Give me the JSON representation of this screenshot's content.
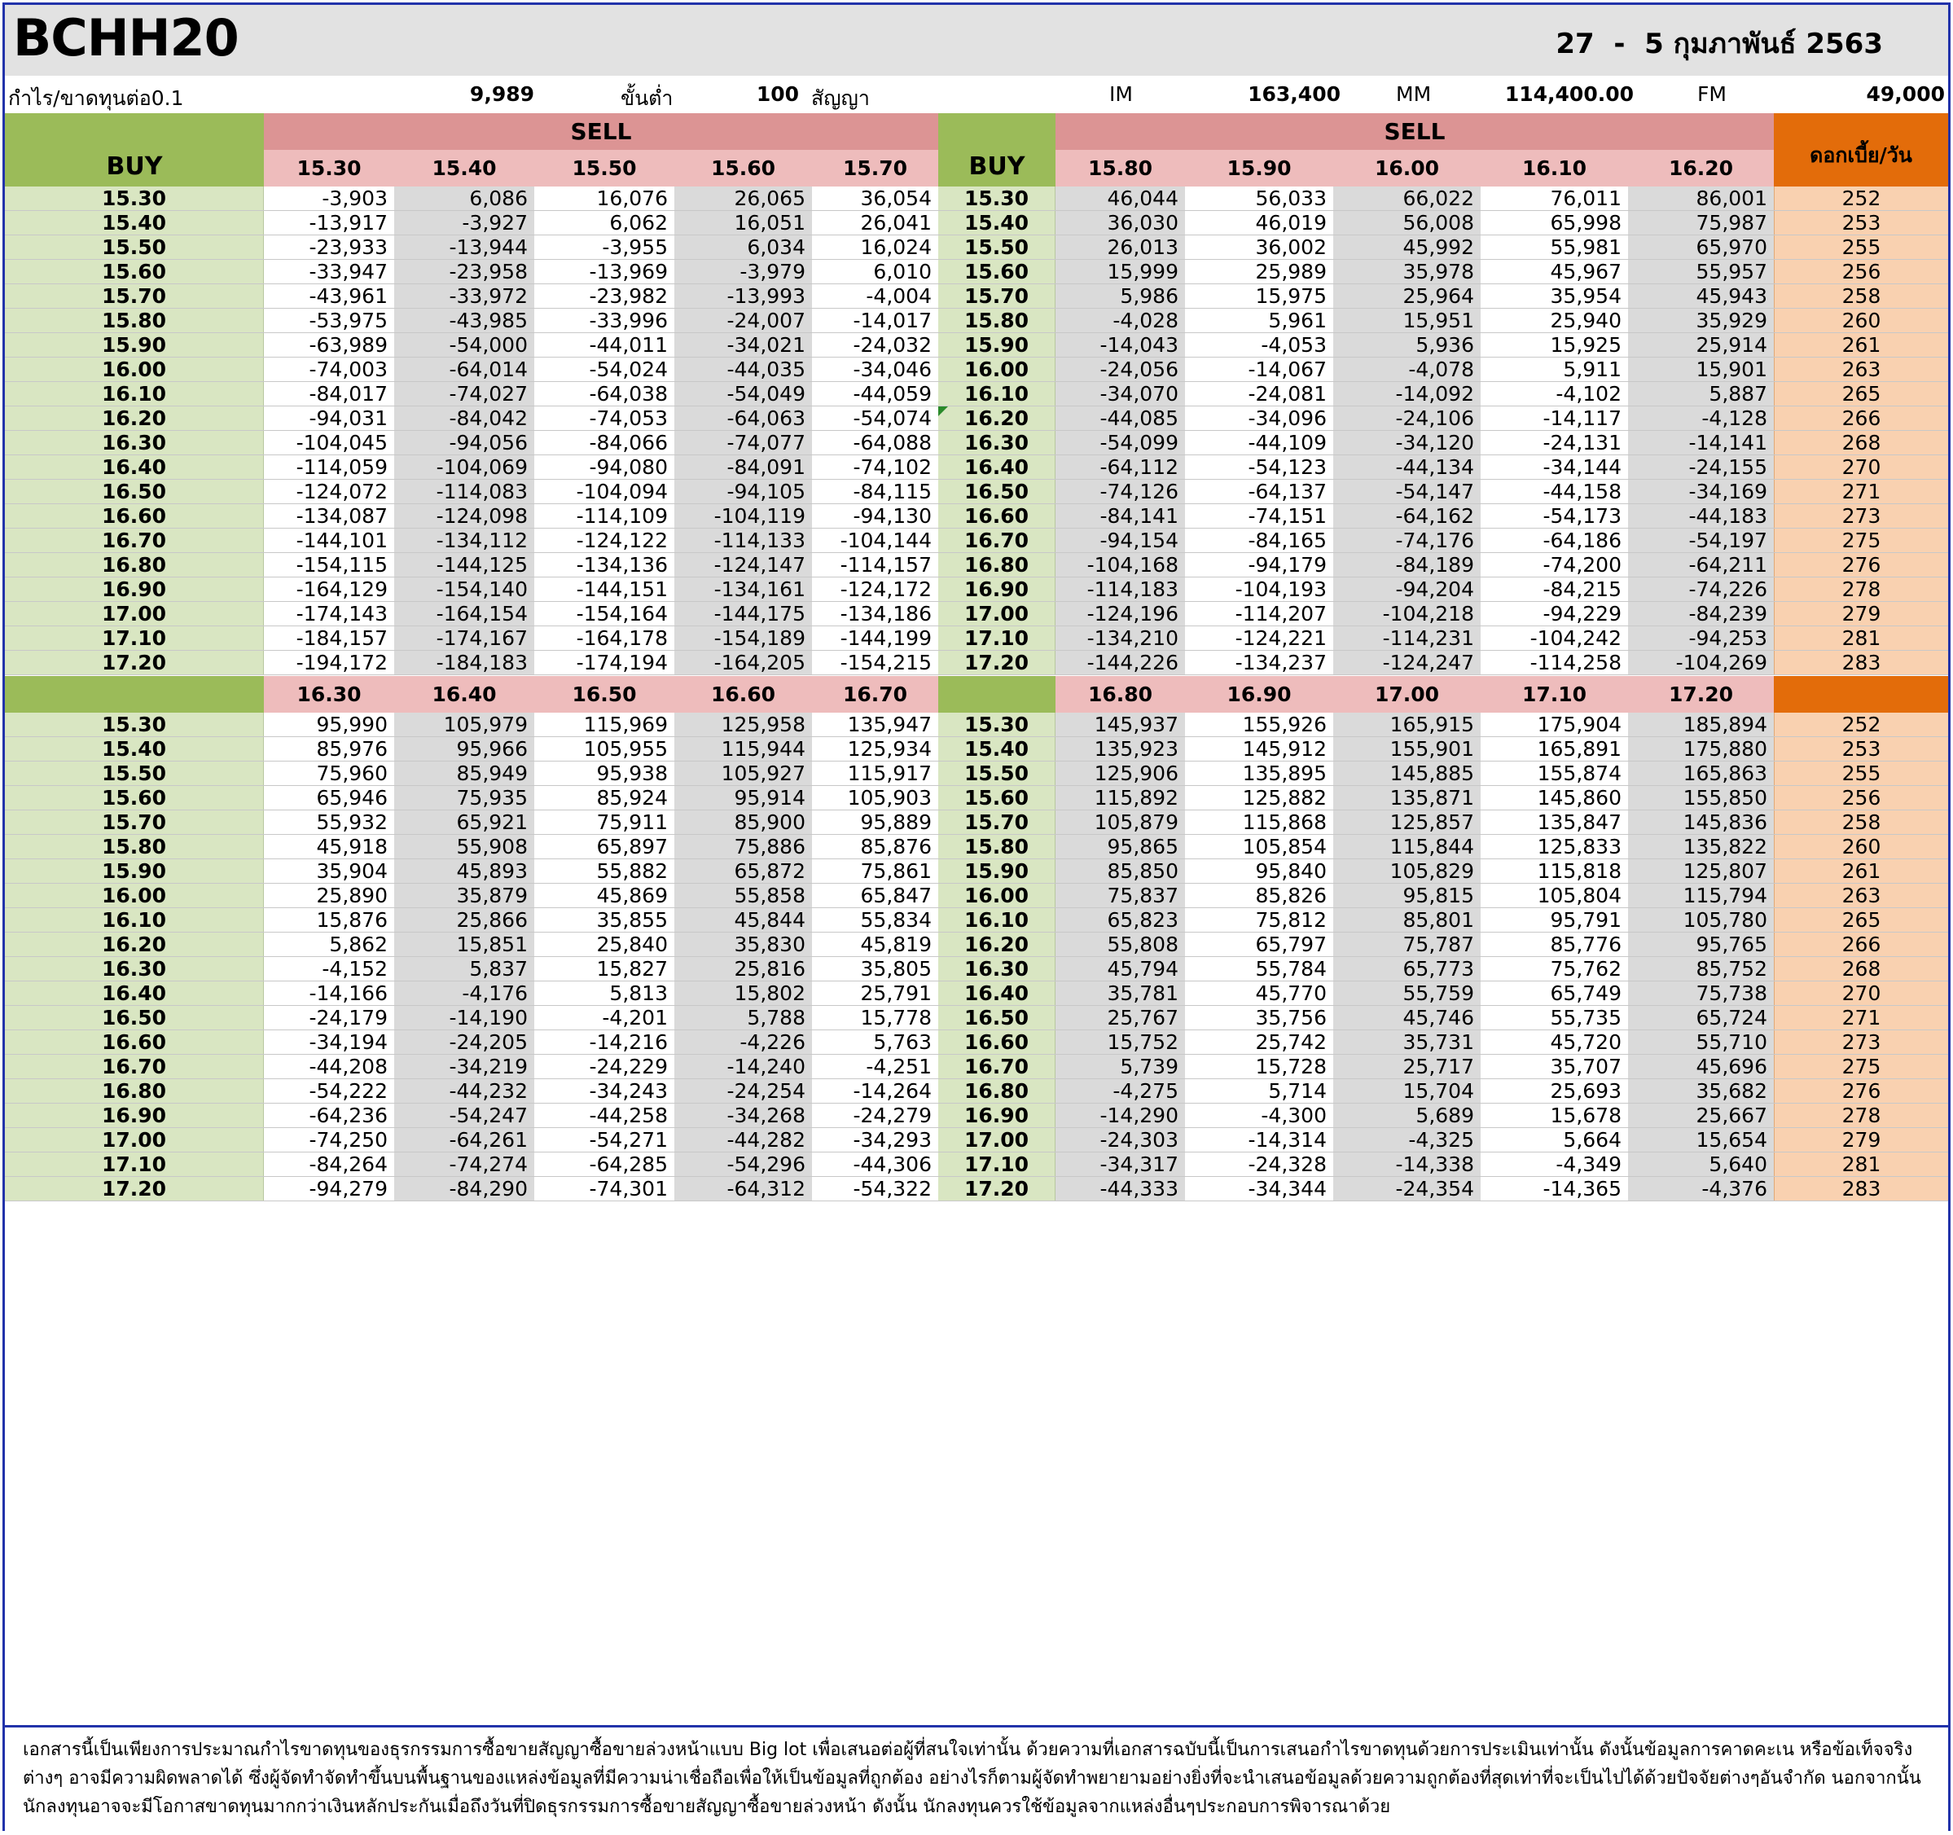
{
  "title": "BCHH20",
  "date": "27  -  5 กุมภาพันธ์ 2563",
  "info": {
    "pl_label": "กำไร/ขาดทุนต่อ0.1",
    "pl_value": "9,989",
    "min_label": "ขั้นต่ำ",
    "min_value": "100",
    "contract_label": "สัญญา",
    "im_label": "IM",
    "im_value": "163,400",
    "mm_label": "MM",
    "mm_value": "114,400.00",
    "fm_label": "FM",
    "fm_value": "49,000"
  },
  "headers": {
    "buy": "BUY",
    "sell": "SELL",
    "interest": "ดอกเบี้ย/วัน"
  },
  "buy_prices": [
    "15.30",
    "15.40",
    "15.50",
    "15.60",
    "15.70",
    "15.80",
    "15.90",
    "16.00",
    "16.10",
    "16.20",
    "16.30",
    "16.40",
    "16.50",
    "16.60",
    "16.70",
    "16.80",
    "16.90",
    "17.00",
    "17.10",
    "17.20"
  ],
  "interest": [
    "252",
    "253",
    "255",
    "256",
    "258",
    "260",
    "261",
    "263",
    "265",
    "266",
    "268",
    "270",
    "271",
    "273",
    "275",
    "276",
    "278",
    "279",
    "281",
    "283"
  ],
  "blocks": [
    {
      "sell_left": [
        "15.30",
        "15.40",
        "15.50",
        "15.60",
        "15.70"
      ],
      "sell_right": [
        "15.80",
        "15.90",
        "16.00",
        "16.10",
        "16.20"
      ],
      "rows": [
        [
          "-3,903",
          "6,086",
          "16,076",
          "26,065",
          "36,054",
          "46,044",
          "56,033",
          "66,022",
          "76,011",
          "86,001"
        ],
        [
          "-13,917",
          "-3,927",
          "6,062",
          "16,051",
          "26,041",
          "36,030",
          "46,019",
          "56,008",
          "65,998",
          "75,987"
        ],
        [
          "-23,933",
          "-13,944",
          "-3,955",
          "6,034",
          "16,024",
          "26,013",
          "36,002",
          "45,992",
          "55,981",
          "65,970"
        ],
        [
          "-33,947",
          "-23,958",
          "-13,969",
          "-3,979",
          "6,010",
          "15,999",
          "25,989",
          "35,978",
          "45,967",
          "55,957"
        ],
        [
          "-43,961",
          "-33,972",
          "-23,982",
          "-13,993",
          "-4,004",
          "5,986",
          "15,975",
          "25,964",
          "35,954",
          "45,943"
        ],
        [
          "-53,975",
          "-43,985",
          "-33,996",
          "-24,007",
          "-14,017",
          "-4,028",
          "5,961",
          "15,951",
          "25,940",
          "35,929"
        ],
        [
          "-63,989",
          "-54,000",
          "-44,011",
          "-34,021",
          "-24,032",
          "-14,043",
          "-4,053",
          "5,936",
          "15,925",
          "25,914"
        ],
        [
          "-74,003",
          "-64,014",
          "-54,024",
          "-44,035",
          "-34,046",
          "-24,056",
          "-14,067",
          "-4,078",
          "5,911",
          "15,901"
        ],
        [
          "-84,017",
          "-74,027",
          "-64,038",
          "-54,049",
          "-44,059",
          "-34,070",
          "-24,081",
          "-14,092",
          "-4,102",
          "5,887"
        ],
        [
          "-94,031",
          "-84,042",
          "-74,053",
          "-64,063",
          "-54,074",
          "-44,085",
          "-34,096",
          "-24,106",
          "-14,117",
          "-4,128"
        ],
        [
          "-104,045",
          "-94,056",
          "-84,066",
          "-74,077",
          "-64,088",
          "-54,099",
          "-44,109",
          "-34,120",
          "-24,131",
          "-14,141"
        ],
        [
          "-114,059",
          "-104,069",
          "-94,080",
          "-84,091",
          "-74,102",
          "-64,112",
          "-54,123",
          "-44,134",
          "-34,144",
          "-24,155"
        ],
        [
          "-124,072",
          "-114,083",
          "-104,094",
          "-94,105",
          "-84,115",
          "-74,126",
          "-64,137",
          "-54,147",
          "-44,158",
          "-34,169"
        ],
        [
          "-134,087",
          "-124,098",
          "-114,109",
          "-104,119",
          "-94,130",
          "-84,141",
          "-74,151",
          "-64,162",
          "-54,173",
          "-44,183"
        ],
        [
          "-144,101",
          "-134,112",
          "-124,122",
          "-114,133",
          "-104,144",
          "-94,154",
          "-84,165",
          "-74,176",
          "-64,186",
          "-54,197"
        ],
        [
          "-154,115",
          "-144,125",
          "-134,136",
          "-124,147",
          "-114,157",
          "-104,168",
          "-94,179",
          "-84,189",
          "-74,200",
          "-64,211"
        ],
        [
          "-164,129",
          "-154,140",
          "-144,151",
          "-134,161",
          "-124,172",
          "-114,183",
          "-104,193",
          "-94,204",
          "-84,215",
          "-74,226"
        ],
        [
          "-174,143",
          "-164,154",
          "-154,164",
          "-144,175",
          "-134,186",
          "-124,196",
          "-114,207",
          "-104,218",
          "-94,229",
          "-84,239"
        ],
        [
          "-184,157",
          "-174,167",
          "-164,178",
          "-154,189",
          "-144,199",
          "-134,210",
          "-124,221",
          "-114,231",
          "-104,242",
          "-94,253"
        ],
        [
          "-194,172",
          "-184,183",
          "-174,194",
          "-164,205",
          "-154,215",
          "-144,226",
          "-134,237",
          "-124,247",
          "-114,258",
          "-104,269"
        ]
      ]
    },
    {
      "sell_left": [
        "16.30",
        "16.40",
        "16.50",
        "16.60",
        "16.70"
      ],
      "sell_right": [
        "16.80",
        "16.90",
        "17.00",
        "17.10",
        "17.20"
      ],
      "rows": [
        [
          "95,990",
          "105,979",
          "115,969",
          "125,958",
          "135,947",
          "145,937",
          "155,926",
          "165,915",
          "175,904",
          "185,894"
        ],
        [
          "85,976",
          "95,966",
          "105,955",
          "115,944",
          "125,934",
          "135,923",
          "145,912",
          "155,901",
          "165,891",
          "175,880"
        ],
        [
          "75,960",
          "85,949",
          "95,938",
          "105,927",
          "115,917",
          "125,906",
          "135,895",
          "145,885",
          "155,874",
          "165,863"
        ],
        [
          "65,946",
          "75,935",
          "85,924",
          "95,914",
          "105,903",
          "115,892",
          "125,882",
          "135,871",
          "145,860",
          "155,850"
        ],
        [
          "55,932",
          "65,921",
          "75,911",
          "85,900",
          "95,889",
          "105,879",
          "115,868",
          "125,857",
          "135,847",
          "145,836"
        ],
        [
          "45,918",
          "55,908",
          "65,897",
          "75,886",
          "85,876",
          "95,865",
          "105,854",
          "115,844",
          "125,833",
          "135,822"
        ],
        [
          "35,904",
          "45,893",
          "55,882",
          "65,872",
          "75,861",
          "85,850",
          "95,840",
          "105,829",
          "115,818",
          "125,807"
        ],
        [
          "25,890",
          "35,879",
          "45,869",
          "55,858",
          "65,847",
          "75,837",
          "85,826",
          "95,815",
          "105,804",
          "115,794"
        ],
        [
          "15,876",
          "25,866",
          "35,855",
          "45,844",
          "55,834",
          "65,823",
          "75,812",
          "85,801",
          "95,791",
          "105,780"
        ],
        [
          "5,862",
          "15,851",
          "25,840",
          "35,830",
          "45,819",
          "55,808",
          "65,797",
          "75,787",
          "85,776",
          "95,765"
        ],
        [
          "-4,152",
          "5,837",
          "15,827",
          "25,816",
          "35,805",
          "45,794",
          "55,784",
          "65,773",
          "75,762",
          "85,752"
        ],
        [
          "-14,166",
          "-4,176",
          "5,813",
          "15,802",
          "25,791",
          "35,781",
          "45,770",
          "55,759",
          "65,749",
          "75,738"
        ],
        [
          "-24,179",
          "-14,190",
          "-4,201",
          "5,788",
          "15,778",
          "25,767",
          "35,756",
          "45,746",
          "55,735",
          "65,724"
        ],
        [
          "-34,194",
          "-24,205",
          "-14,216",
          "-4,226",
          "5,763",
          "15,752",
          "25,742",
          "35,731",
          "45,720",
          "55,710"
        ],
        [
          "-44,208",
          "-34,219",
          "-24,229",
          "-14,240",
          "-4,251",
          "5,739",
          "15,728",
          "25,717",
          "35,707",
          "45,696"
        ],
        [
          "-54,222",
          "-44,232",
          "-34,243",
          "-24,254",
          "-14,264",
          "-4,275",
          "5,714",
          "15,704",
          "25,693",
          "35,682"
        ],
        [
          "-64,236",
          "-54,247",
          "-44,258",
          "-34,268",
          "-24,279",
          "-14,290",
          "-4,300",
          "5,689",
          "15,678",
          "25,667"
        ],
        [
          "-74,250",
          "-64,261",
          "-54,271",
          "-44,282",
          "-34,293",
          "-24,303",
          "-14,314",
          "-4,325",
          "5,664",
          "15,654"
        ],
        [
          "-84,264",
          "-74,274",
          "-64,285",
          "-54,296",
          "-44,306",
          "-34,317",
          "-24,328",
          "-14,338",
          "-4,349",
          "5,640"
        ],
        [
          "-94,279",
          "-84,290",
          "-74,301",
          "-64,312",
          "-54,322",
          "-44,333",
          "-34,344",
          "-24,354",
          "-14,365",
          "-4,376"
        ]
      ]
    }
  ],
  "footnote": "เอกสารนี้เป็นเพียงการประมาณกำไรขาดทุนของธุรกรรมการซื้อขายสัญญาซื้อขายล่วงหน้าแบบ  Big lot เพื่อเสนอต่อผู้ที่สนใจเท่านั้น  ด้วยความที่เอกสารฉบับนี้เป็นการเสนอกำไรขาดทุนด้วยการประเมินเท่านั้น  ดังนั้นข้อมูลการคาดคะเน  หรือข้อเท็จจริงต่างๆ  อาจมีความผิดพลาดได้  ซึ่งผู้จัดทำจัดทำขึ้นบนพื้นฐานของแหล่งข้อมูลที่มีความน่าเชื่อถือเพื่อให้เป็นข้อมูลที่ถูกต้อง  อย่างไรก็ตามผู้จัดทำพยายามอย่างยิ่งที่จะนำเสนอข้อมูลด้วยความถูกต้องที่สุดเท่าที่จะเป็นไปได้ด้วยปัจจัยต่างๆอันจำกัด  นอกจากนั้นนักลงทุนอาจจะมีโอกาสขาดทุนมากกว่าเงินหลักประกันเมื่อถึงวันที่ปิดธุรกรรมการซื้อขายสัญญาซื้อขายล่วงหน้า  ดังนั้น นักลงทุนควรใช้ข้อมูลจากแหล่งอื่นๆประกอบการพิจารณาด้วย"
}
